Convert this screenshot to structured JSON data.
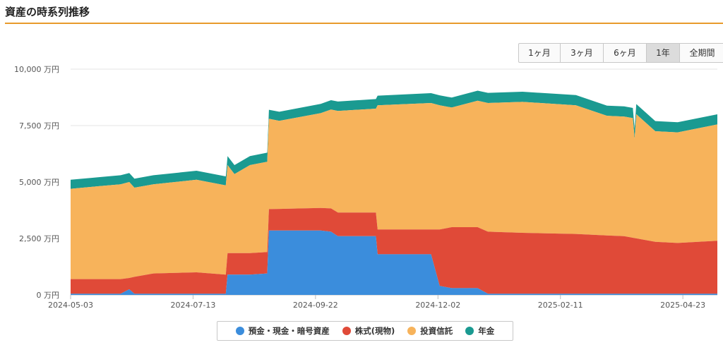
{
  "page": {
    "title": "資産の時系列推移"
  },
  "range_buttons": [
    {
      "label": "1ヶ月",
      "active": false
    },
    {
      "label": "3ヶ月",
      "active": false
    },
    {
      "label": "6ヶ月",
      "active": false
    },
    {
      "label": "1年",
      "active": true
    },
    {
      "label": "全期間",
      "active": false
    }
  ],
  "colors": {
    "deposit": "#3b8ddc",
    "stock": "#e04a38",
    "fund": "#f7b35b",
    "pension": "#1a9a91",
    "accent": "#e89a2c"
  },
  "chart_data": {
    "type": "area",
    "stacked": true,
    "x_start": "2024-05-03",
    "x_end": "2025-05-13",
    "x_ticks": [
      "2024-05-03",
      "2024-07-13",
      "2024-09-22",
      "2024-12-02",
      "2025-02-11",
      "2025-04-23"
    ],
    "ylim": [
      0,
      10000
    ],
    "y_ticks": [
      {
        "value": 0,
        "label": "0 万円"
      },
      {
        "value": 2500,
        "label": "2,500 万円"
      },
      {
        "value": 5000,
        "label": "5,000 万円"
      },
      {
        "value": 7500,
        "label": "7,500 万円"
      },
      {
        "value": 10000,
        "label": "10,000 万円"
      }
    ],
    "y_unit": "万円",
    "grid": true,
    "legend_position": "bottom",
    "series": [
      {
        "name": "預金・現金・暗号資産",
        "color": "#3b8ddc",
        "points": [
          [
            "2024-05-03",
            50
          ],
          [
            "2024-05-20",
            50
          ],
          [
            "2024-06-01",
            50
          ],
          [
            "2024-06-06",
            250
          ],
          [
            "2024-06-09",
            50
          ],
          [
            "2024-07-01",
            50
          ],
          [
            "2024-08-01",
            50
          ],
          [
            "2024-08-02",
            900
          ],
          [
            "2024-08-15",
            900
          ],
          [
            "2024-08-25",
            950
          ],
          [
            "2024-08-26",
            2850
          ],
          [
            "2024-09-25",
            2850
          ],
          [
            "2024-10-01",
            2800
          ],
          [
            "2024-10-05",
            2600
          ],
          [
            "2024-10-27",
            2600
          ],
          [
            "2024-10-28",
            1800
          ],
          [
            "2024-11-28",
            1800
          ],
          [
            "2024-12-03",
            400
          ],
          [
            "2024-12-10",
            300
          ],
          [
            "2024-12-25",
            300
          ],
          [
            "2024-12-31",
            50
          ],
          [
            "2025-05-13",
            50
          ]
        ]
      },
      {
        "name": "株式(現物)",
        "color": "#e04a38",
        "points": [
          [
            "2024-05-03",
            650
          ],
          [
            "2024-06-01",
            650
          ],
          [
            "2024-06-06",
            500
          ],
          [
            "2024-06-09",
            750
          ],
          [
            "2024-06-20",
            900
          ],
          [
            "2024-07-15",
            950
          ],
          [
            "2024-08-01",
            850
          ],
          [
            "2024-08-02",
            950
          ],
          [
            "2024-08-25",
            950
          ],
          [
            "2024-08-26",
            950
          ],
          [
            "2024-09-25",
            1000
          ],
          [
            "2024-10-05",
            1050
          ],
          [
            "2024-10-27",
            1050
          ],
          [
            "2024-10-28",
            1100
          ],
          [
            "2024-11-28",
            1100
          ],
          [
            "2024-12-03",
            2500
          ],
          [
            "2024-12-10",
            2700
          ],
          [
            "2024-12-25",
            2700
          ],
          [
            "2024-12-31",
            2750
          ],
          [
            "2025-01-20",
            2700
          ],
          [
            "2025-02-20",
            2650
          ],
          [
            "2025-03-20",
            2550
          ],
          [
            "2025-04-07",
            2300
          ],
          [
            "2025-04-20",
            2250
          ],
          [
            "2025-05-13",
            2350
          ]
        ]
      },
      {
        "name": "投資信託",
        "color": "#f7b35b",
        "points": [
          [
            "2024-05-03",
            4000
          ],
          [
            "2024-06-01",
            4200
          ],
          [
            "2024-06-06",
            4250
          ],
          [
            "2024-06-09",
            3950
          ],
          [
            "2024-06-20",
            3950
          ],
          [
            "2024-07-15",
            4100
          ],
          [
            "2024-08-01",
            3950
          ],
          [
            "2024-08-02",
            3900
          ],
          [
            "2024-08-06",
            3500
          ],
          [
            "2024-08-15",
            3900
          ],
          [
            "2024-08-25",
            4000
          ],
          [
            "2024-08-26",
            4000
          ],
          [
            "2024-09-01",
            3900
          ],
          [
            "2024-09-25",
            4200
          ],
          [
            "2024-10-05",
            4500
          ],
          [
            "2024-10-27",
            4600
          ],
          [
            "2024-10-28",
            5500
          ],
          [
            "2024-11-28",
            5600
          ],
          [
            "2024-12-03",
            5500
          ],
          [
            "2024-12-10",
            5300
          ],
          [
            "2024-12-25",
            5600
          ],
          [
            "2024-12-31",
            5700
          ],
          [
            "2025-01-20",
            5800
          ],
          [
            "2025-02-20",
            5700
          ],
          [
            "2025-03-10",
            5300
          ],
          [
            "2025-03-25",
            5300
          ],
          [
            "2025-03-26",
            4400
          ],
          [
            "2025-03-27",
            5500
          ],
          [
            "2025-04-07",
            4900
          ],
          [
            "2025-04-20",
            4900
          ],
          [
            "2025-05-13",
            5150
          ]
        ]
      },
      {
        "name": "年金",
        "color": "#1a9a91",
        "points": [
          [
            "2024-05-03",
            400
          ],
          [
            "2024-08-25",
            400
          ],
          [
            "2024-12-31",
            450
          ],
          [
            "2025-05-13",
            450
          ]
        ]
      }
    ]
  }
}
